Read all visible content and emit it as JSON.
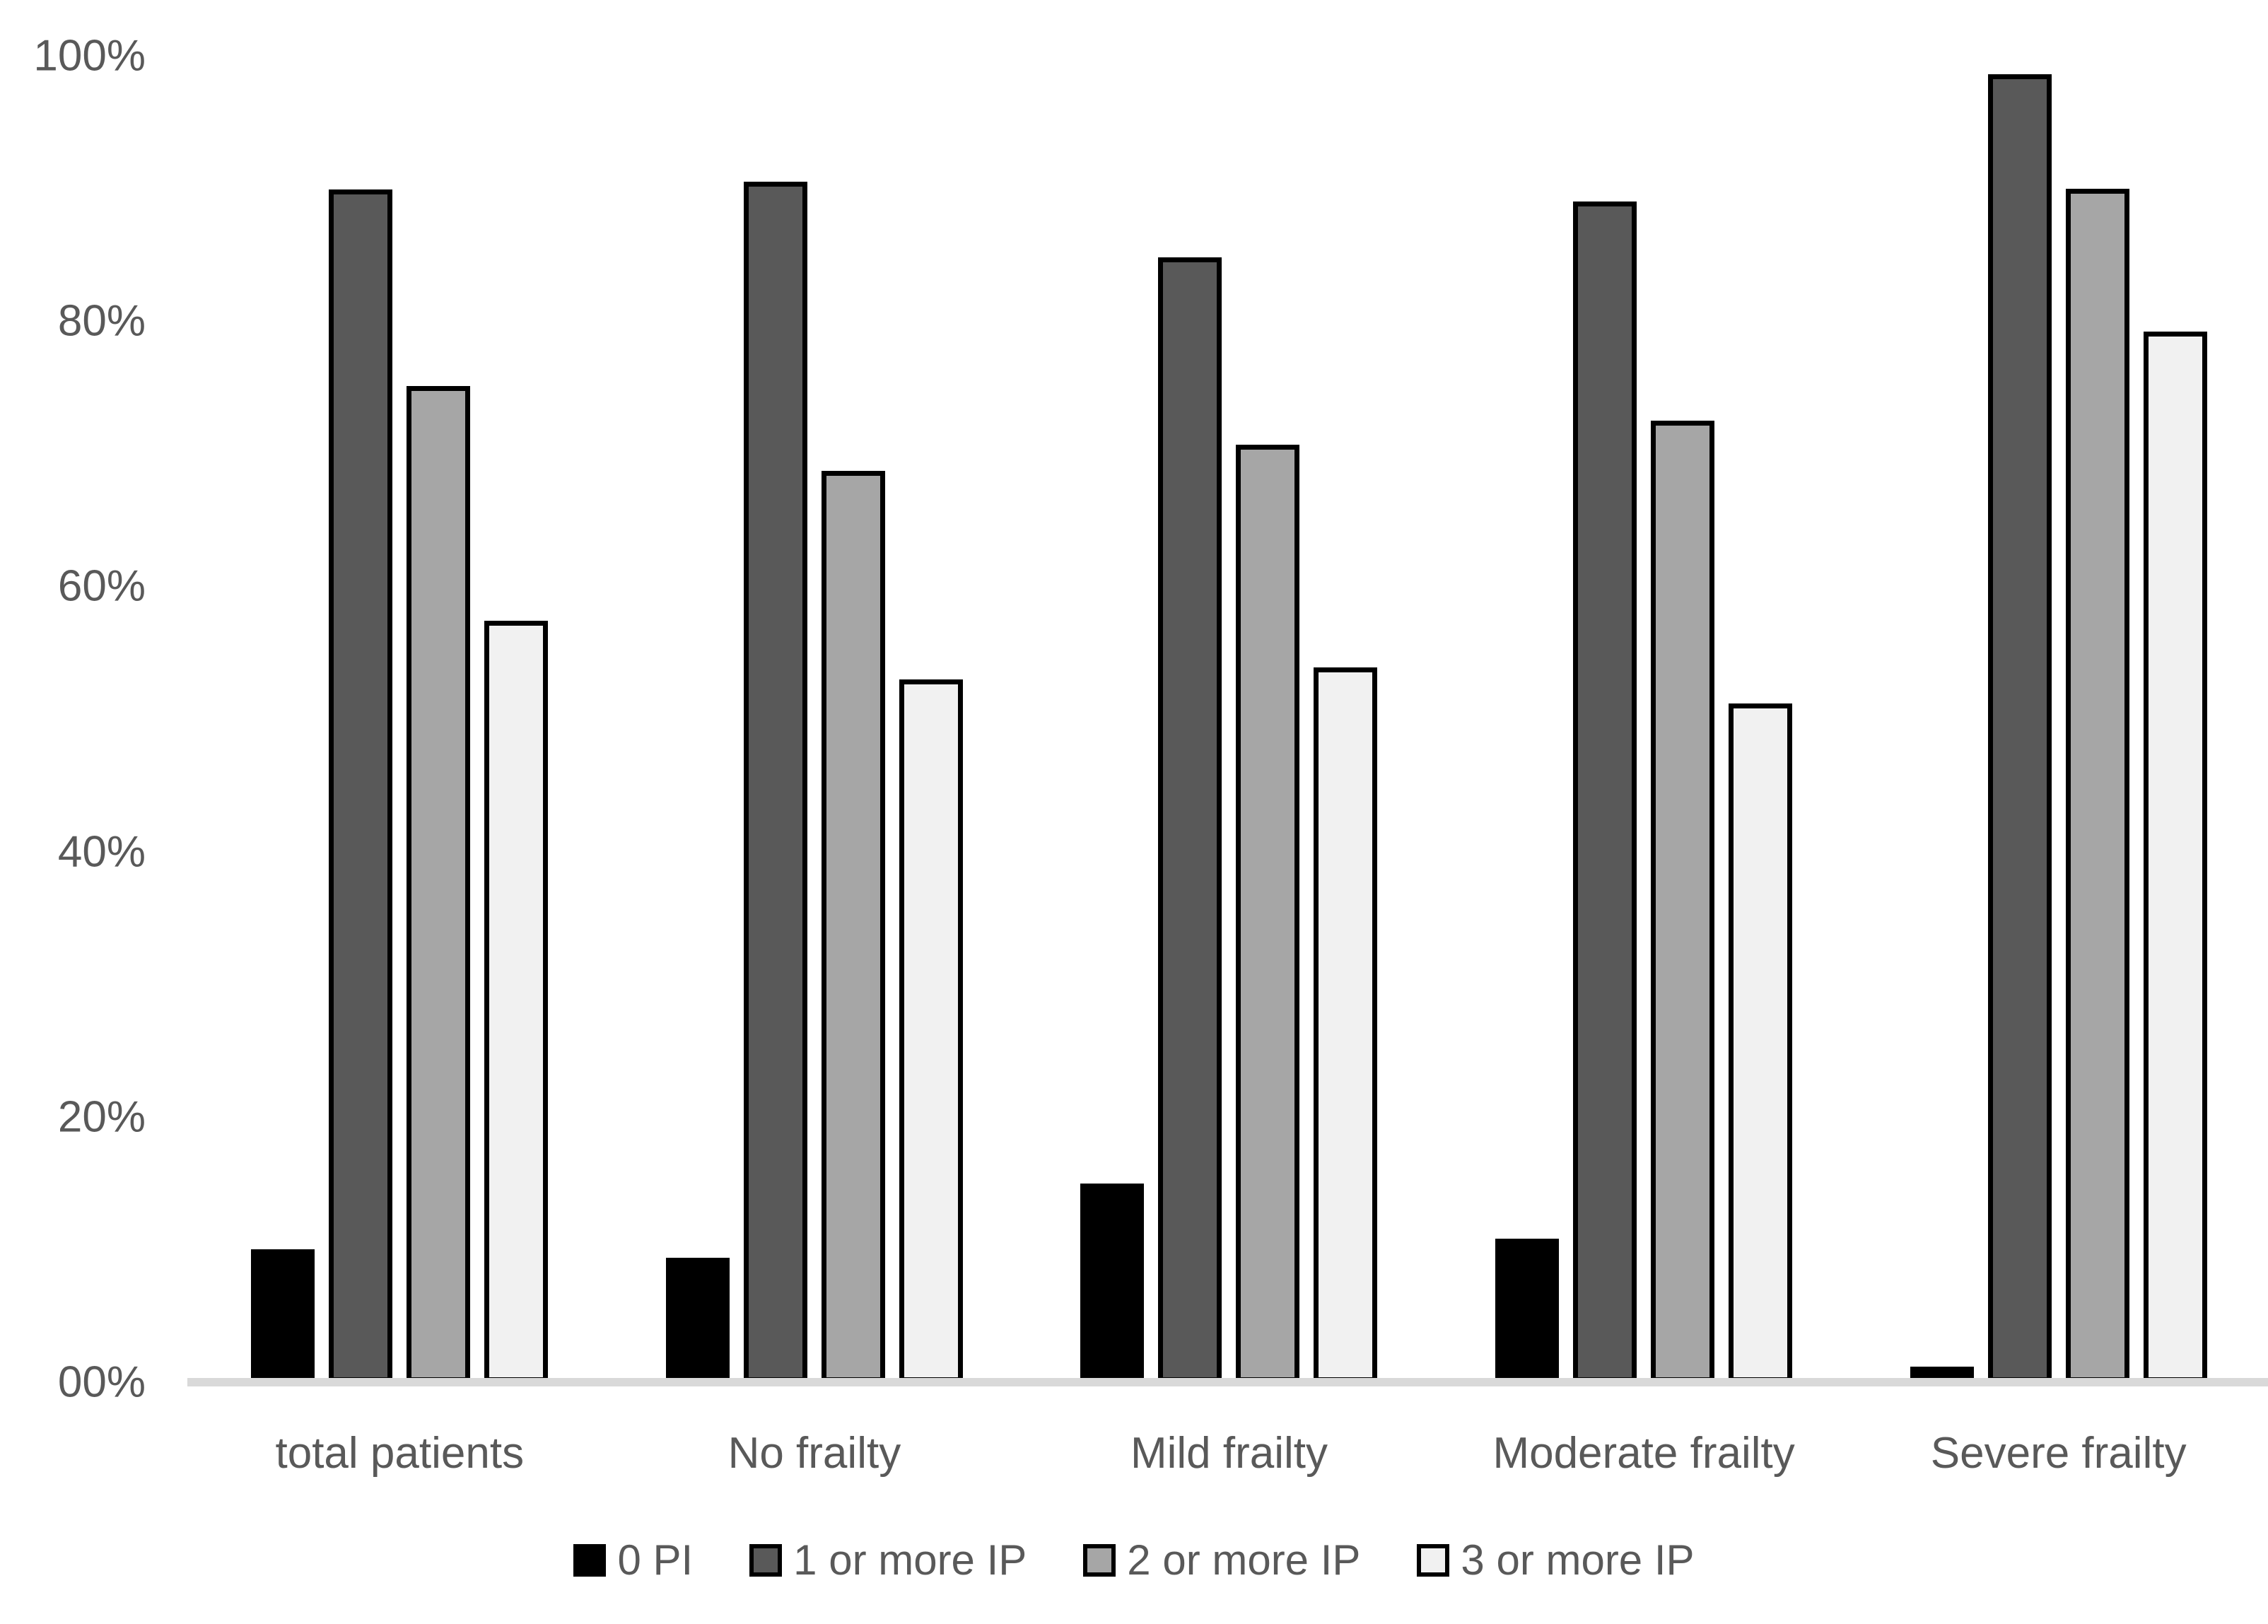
{
  "chart_data": {
    "type": "bar",
    "title": "",
    "xlabel": "",
    "ylabel": "",
    "ylim": [
      0,
      100
    ],
    "grid": false,
    "legend_position": "bottom",
    "y_ticks": [
      {
        "label": "100%",
        "value": 100
      },
      {
        "label": "80%",
        "value": 80
      },
      {
        "label": "60%",
        "value": 60
      },
      {
        "label": "40%",
        "value": 40
      },
      {
        "label": "20%",
        "value": 20
      },
      {
        "label": "00%",
        "value": 0
      }
    ],
    "categories": [
      "total patients",
      "No frailty",
      "Mild frailty",
      "Moderate frailty",
      "Severe frailty"
    ],
    "series": [
      {
        "name": "0 PI",
        "color": "#000000",
        "values": [
          10,
          9.4,
          15,
          10.8,
          1.2
        ]
      },
      {
        "name": "1 or more IP",
        "color": "#595959",
        "values": [
          89.9,
          90.5,
          84.8,
          89,
          98.6
        ]
      },
      {
        "name": "2 or more IP",
        "color": "#a6a6a6",
        "values": [
          75.1,
          68.7,
          70.7,
          72.5,
          90
        ]
      },
      {
        "name": "3 or more IP",
        "color": "#f1f1f1",
        "values": [
          57.4,
          53,
          53.9,
          51.2,
          79.2
        ]
      }
    ],
    "colors": {
      "axis_line": "#d9d9d9",
      "text": "#595959",
      "bar_border": "#000000",
      "background": "#ffffff"
    }
  }
}
